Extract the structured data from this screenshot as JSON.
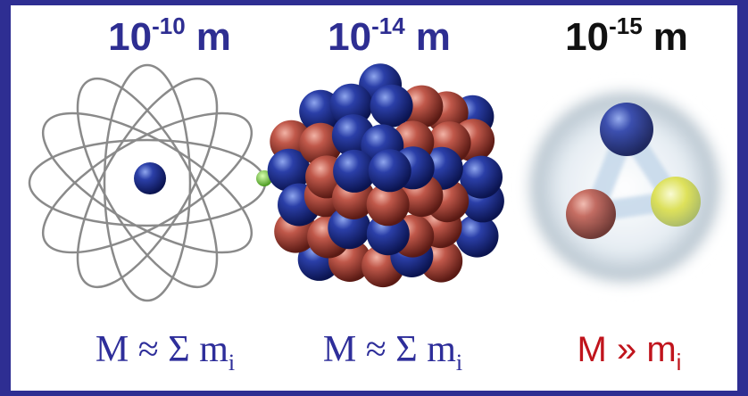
{
  "panels": [
    {
      "scale": {
        "base": "10",
        "exponent": "-10",
        "unit": "m"
      },
      "formula": {
        "text": "M ≈ Σ m",
        "subscript": "i"
      }
    },
    {
      "scale": {
        "base": "10",
        "exponent": "-14",
        "unit": "m"
      },
      "formula": {
        "text": "M ≈ Σ m",
        "subscript": "i"
      }
    },
    {
      "scale": {
        "base": "10",
        "exponent": "-15",
        "unit": "m"
      },
      "formula": {
        "text": "M » m",
        "subscript": "i"
      }
    }
  ]
}
